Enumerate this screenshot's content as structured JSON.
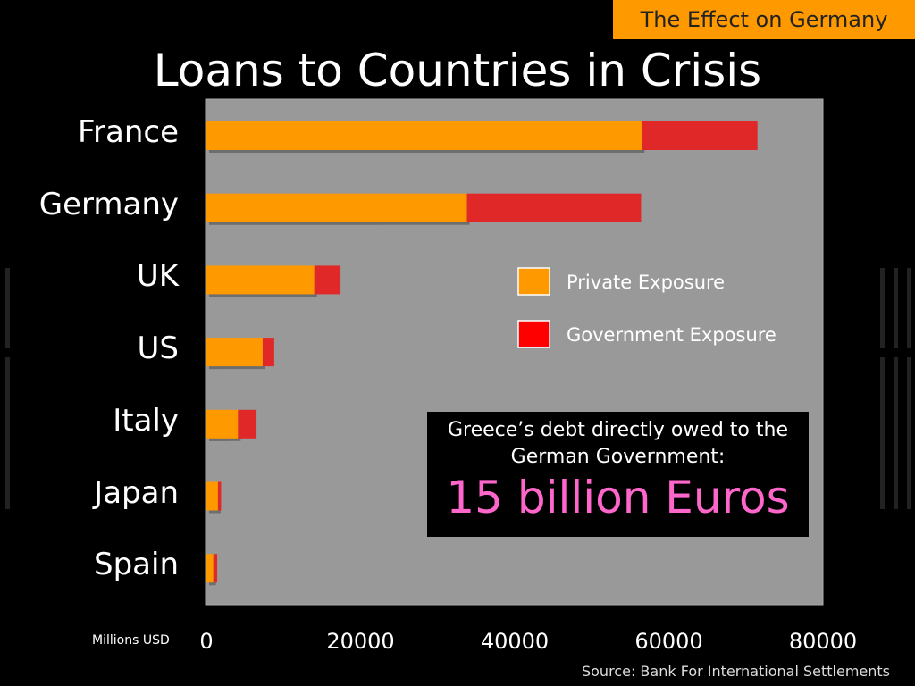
{
  "header": {
    "section_tag": "The Effect on Germany",
    "title": "Loans to Countries in Crisis"
  },
  "chart_data": {
    "type": "bar",
    "orientation": "horizontal",
    "stacked": true,
    "title": "Loans to Countries in Crisis",
    "xlabel": "Millions USD",
    "ylabel": "",
    "xlim": [
      0,
      80000
    ],
    "x_ticks": [
      "0",
      "20000",
      "40000",
      "60000",
      "80000"
    ],
    "categories": [
      "France",
      "Germany",
      "UK",
      "US",
      "Italy",
      "Japan",
      "Spain"
    ],
    "series": [
      {
        "name": "Private Exposure",
        "color": "#ff9900",
        "values": [
          56500,
          33800,
          14000,
          7300,
          4100,
          1500,
          900
        ]
      },
      {
        "name": "Government Exposure",
        "color": "#e02828",
        "values": [
          15000,
          22600,
          3400,
          1500,
          2400,
          400,
          500
        ]
      }
    ],
    "legend_position": "right"
  },
  "callout": {
    "text": "Greece’s debt directly owed to the German Government:",
    "amount": "15 billion Euros"
  },
  "source": "Source: Bank For International Settlements"
}
